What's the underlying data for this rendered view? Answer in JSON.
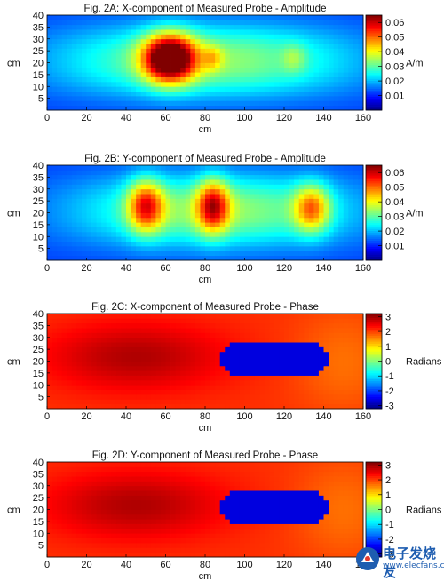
{
  "chart_data": [
    {
      "type": "heatmap",
      "title": "Fig. 2A: X-component of Measured Probe - Amplitude",
      "xlabel": "cm",
      "ylabel": "cm",
      "xlim": [
        0,
        160
      ],
      "ylim": [
        0,
        40
      ],
      "x_ticks": [
        "0",
        "20",
        "40",
        "60",
        "80",
        "100",
        "120",
        "140",
        "160"
      ],
      "y_ticks": [
        "5",
        "10",
        "15",
        "20",
        "25",
        "30",
        "35",
        "40"
      ],
      "colorbar": {
        "label": "A/m",
        "range": [
          0,
          0.065
        ],
        "ticks": [
          "0.06",
          "0.05",
          "0.04",
          "0.03",
          "0.02",
          "0.01"
        ],
        "tick_values": [
          0.06,
          0.05,
          0.04,
          0.03,
          0.02,
          0.01
        ]
      },
      "colormap": "jet",
      "field": {
        "background": 0.012,
        "blobs": [
          {
            "x": 80,
            "y": 21,
            "sx": 75,
            "sy": 15,
            "v": 0.022,
            "p": 2.2
          },
          {
            "x": 62,
            "y": 22,
            "sx": 13,
            "sy": 10,
            "v": 0.05,
            "p": 2
          },
          {
            "x": 84,
            "y": 22,
            "sx": 5,
            "sy": 5,
            "v": 0.01,
            "p": 2
          },
          {
            "x": 125,
            "y": 22,
            "sx": 6,
            "sy": 6,
            "v": 0.008,
            "p": 2
          }
        ]
      }
    },
    {
      "type": "heatmap",
      "title": "Fig. 2B: Y-component of Measured Probe - Amplitude",
      "xlabel": "cm",
      "ylabel": "cm",
      "xlim": [
        0,
        160
      ],
      "ylim": [
        0,
        40
      ],
      "x_ticks": [
        "0",
        "20",
        "40",
        "60",
        "80",
        "100",
        "120",
        "140",
        "160"
      ],
      "y_ticks": [
        "5",
        "10",
        "15",
        "20",
        "25",
        "30",
        "35",
        "40"
      ],
      "colorbar": {
        "label": "A/m",
        "range": [
          0,
          0.065
        ],
        "ticks": [
          "0.06",
          "0.05",
          "0.04",
          "0.03",
          "0.02",
          "0.01"
        ],
        "tick_values": [
          0.06,
          0.05,
          0.04,
          0.03,
          0.02,
          0.01
        ]
      },
      "colormap": "jet",
      "field": {
        "background": 0.012,
        "blobs": [
          {
            "x": 85,
            "y": 21,
            "sx": 70,
            "sy": 15,
            "v": 0.022,
            "p": 2.2
          },
          {
            "x": 50,
            "y": 23,
            "sx": 9,
            "sy": 11,
            "v": 0.03,
            "p": 2
          },
          {
            "x": 84,
            "y": 23,
            "sx": 8,
            "sy": 11,
            "v": 0.03,
            "p": 2
          },
          {
            "x": 134,
            "y": 22,
            "sx": 9,
            "sy": 10,
            "v": 0.026,
            "p": 2
          }
        ]
      }
    },
    {
      "type": "heatmap",
      "title": "Fig. 2C: X-component of Measured Probe - Phase",
      "xlabel": "cm",
      "ylabel": "cm",
      "xlim": [
        0,
        160
      ],
      "ylim": [
        0,
        40
      ],
      "x_ticks": [
        "0",
        "20",
        "40",
        "60",
        "80",
        "100",
        "120",
        "140",
        "160"
      ],
      "y_ticks": [
        "5",
        "10",
        "15",
        "20",
        "25",
        "30",
        "35",
        "40"
      ],
      "colorbar": {
        "label": "Radians",
        "range": [
          -3.2,
          3.2
        ],
        "ticks": [
          "3",
          "2",
          "1",
          "0",
          "-1",
          "-2",
          "-3"
        ],
        "tick_values": [
          3,
          2,
          1,
          0,
          -1,
          -2,
          -3
        ]
      },
      "colormap": "jet",
      "field": {
        "background": 2.1,
        "blobs": [
          {
            "x": 45,
            "y": 22,
            "sx": 45,
            "sy": 14,
            "v": 0.8,
            "p": 2
          },
          {
            "x": 150,
            "y": 20,
            "sx": 25,
            "sy": 22,
            "v": -0.4,
            "p": 2
          }
        ],
        "region": {
          "x": [
            88,
            142
          ],
          "y": [
            14,
            28
          ],
          "value": -2.6
        }
      }
    },
    {
      "type": "heatmap",
      "title": "Fig. 2D: Y-component of Measured Probe - Phase",
      "xlabel": "cm",
      "ylabel": "cm",
      "xlim": [
        0,
        160
      ],
      "ylim": [
        0,
        40
      ],
      "x_ticks": [
        "0",
        "20",
        "40",
        "60",
        "80",
        "100",
        "120",
        "140",
        "160"
      ],
      "y_ticks": [
        "5",
        "10",
        "15",
        "20",
        "25",
        "30",
        "35",
        "40"
      ],
      "colorbar": {
        "label": "Radians",
        "range": [
          -3.2,
          3.2
        ],
        "ticks": [
          "3",
          "2",
          "1",
          "0",
          "-1",
          "-2",
          "-3"
        ],
        "tick_values": [
          3,
          2,
          1,
          0,
          -1,
          -2,
          -3
        ]
      },
      "colormap": "jet",
      "field": {
        "background": 2.1,
        "blobs": [
          {
            "x": 45,
            "y": 22,
            "sx": 45,
            "sy": 14,
            "v": 0.8,
            "p": 2
          },
          {
            "x": 150,
            "y": 20,
            "sx": 25,
            "sy": 22,
            "v": -0.4,
            "p": 2
          }
        ],
        "region": {
          "x": [
            88,
            142
          ],
          "y": [
            14,
            28
          ],
          "value": -2.6
        }
      }
    }
  ],
  "watermark": {
    "text": "电子发烧友",
    "subtext": "www.elecfans.com",
    "colors": {
      "primary": "#1e5db0",
      "accent": "#e23a2f"
    }
  }
}
